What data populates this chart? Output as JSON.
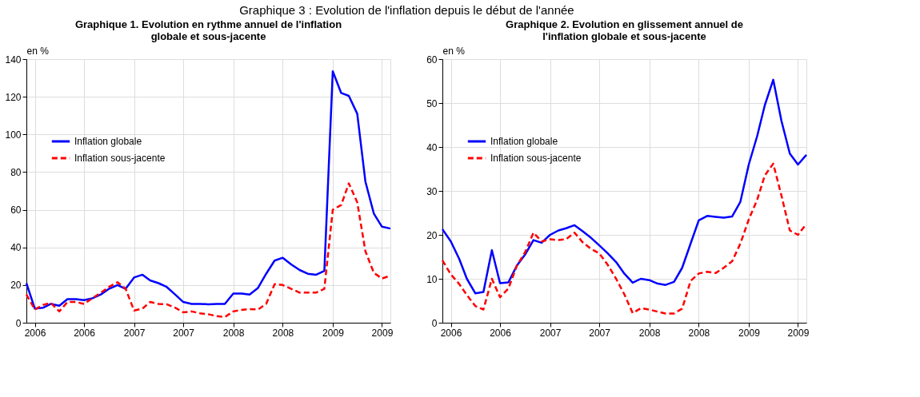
{
  "chart_data": [
    {
      "type": "line",
      "title": "Graphique 1. Evolution en rythme annuel de l'inflation globale et sous-jacente",
      "ylabel": "en %",
      "annotations": [
        "Graphique 3 : Evolution de l'inflation depuis le début de l'année"
      ],
      "x": [
        "2005-12",
        "2006-01",
        "2006-02",
        "2006-03",
        "2006-04",
        "2006-05",
        "2006-06",
        "2006-07",
        "2006-08",
        "2006-09",
        "2006-10",
        "2006-11",
        "2006-12",
        "2007-01",
        "2007-02",
        "2007-03",
        "2007-04",
        "2007-05",
        "2007-06",
        "2007-07",
        "2007-08",
        "2007-09",
        "2007-10",
        "2007-11",
        "2007-12",
        "2008-01",
        "2008-02",
        "2008-03",
        "2008-04",
        "2008-05",
        "2008-06",
        "2008-07",
        "2008-08",
        "2008-09",
        "2008-10",
        "2008-11",
        "2008-12",
        "2009-01",
        "2009-02",
        "2009-03",
        "2009-04",
        "2009-05",
        "2009-06",
        "2009-07",
        "2009-08"
      ],
      "xlim": [
        "2005-12",
        "2009-08"
      ],
      "xticks": [
        {
          "value": "2006-01",
          "label": "2006"
        },
        {
          "value": "2006-07",
          "label": "2006"
        },
        {
          "value": "2007-01",
          "label": "2007"
        },
        {
          "value": "2007-07",
          "label": "2007"
        },
        {
          "value": "2008-01",
          "label": "2008"
        },
        {
          "value": "2008-07",
          "label": "2008"
        },
        {
          "value": "2009-01",
          "label": "2009"
        },
        {
          "value": "2009-07",
          "label": "2009"
        }
      ],
      "ylim": [
        0,
        140
      ],
      "yticks": [
        0,
        20,
        40,
        60,
        80,
        100,
        120,
        140
      ],
      "grid": true,
      "legend": "top left",
      "series": [
        {
          "name": "Inflation globale",
          "color": "#0000ff",
          "line_style": "solid",
          "values": [
            21,
            7.5,
            8,
            10,
            9,
            12.5,
            12.5,
            12,
            13,
            15,
            18,
            20,
            18,
            24,
            25.5,
            22.5,
            21,
            19,
            15,
            11,
            10,
            10,
            9.8,
            10,
            10,
            15.5,
            15.5,
            15,
            18.5,
            26,
            33,
            34.5,
            31,
            28,
            26,
            25.5,
            27.5,
            133.5,
            122,
            120.5,
            111,
            75,
            58,
            51,
            50
          ]
        },
        {
          "name": "Inflation sous-jacente",
          "color": "#ff0000",
          "line_style": "dashed",
          "values": [
            15,
            7,
            9.5,
            10.5,
            6,
            11,
            11,
            10,
            13,
            16,
            19,
            21.5,
            18,
            6.5,
            7.5,
            11,
            10,
            9.8,
            8,
            5.5,
            6,
            5,
            4.5,
            3.5,
            3,
            6,
            6.8,
            7.2,
            7,
            10,
            20.5,
            20,
            18,
            16,
            16,
            16,
            18,
            60,
            62.5,
            74,
            64,
            38,
            26.5,
            23.5,
            25
          ]
        }
      ]
    },
    {
      "type": "line",
      "title": "Graphique 2. Evolution en glissement annuel de l'inflation globale et sous-jacente",
      "ylabel": "en %",
      "x": [
        "2005-12",
        "2006-01",
        "2006-02",
        "2006-03",
        "2006-04",
        "2006-05",
        "2006-06",
        "2006-07",
        "2006-08",
        "2006-09",
        "2006-10",
        "2006-11",
        "2006-12",
        "2007-01",
        "2007-02",
        "2007-03",
        "2007-04",
        "2007-05",
        "2007-06",
        "2007-07",
        "2007-08",
        "2007-09",
        "2007-10",
        "2007-11",
        "2007-12",
        "2008-01",
        "2008-02",
        "2008-03",
        "2008-04",
        "2008-05",
        "2008-06",
        "2008-07",
        "2008-08",
        "2008-09",
        "2008-10",
        "2008-11",
        "2008-12",
        "2009-01",
        "2009-02",
        "2009-03",
        "2009-04",
        "2009-05",
        "2009-06",
        "2009-07",
        "2009-08"
      ],
      "xlim": [
        "2005-12",
        "2009-08"
      ],
      "xticks": [
        {
          "value": "2006-01",
          "label": "2006"
        },
        {
          "value": "2006-07",
          "label": "2006"
        },
        {
          "value": "2007-01",
          "label": "2007"
        },
        {
          "value": "2007-07",
          "label": "2007"
        },
        {
          "value": "2008-01",
          "label": "2008"
        },
        {
          "value": "2008-07",
          "label": "2008"
        },
        {
          "value": "2009-01",
          "label": "2009"
        },
        {
          "value": "2009-07",
          "label": "2009"
        }
      ],
      "ylim": [
        0,
        60
      ],
      "yticks": [
        0,
        10,
        20,
        30,
        40,
        50,
        60
      ],
      "grid": true,
      "legend": "top left",
      "series": [
        {
          "name": "Inflation globale",
          "color": "#0000ff",
          "line_style": "solid",
          "values": [
            21.3,
            18.5,
            14.5,
            10,
            6.7,
            7,
            16.5,
            9,
            9.2,
            13,
            15.5,
            18.8,
            18.2,
            20,
            21,
            21.5,
            22.2,
            20.8,
            19.3,
            17.6,
            15.8,
            13.8,
            11.2,
            9.1,
            10,
            9.7,
            8.9,
            8.6,
            9.3,
            12.5,
            18,
            23.3,
            24.3,
            24.1,
            23.9,
            24.2,
            27.5,
            36,
            42.5,
            49.5,
            55.3,
            46,
            38.5,
            36,
            38.2
          ]
        },
        {
          "name": "Inflation sous-jacente",
          "color": "#ff0000",
          "line_style": "dashed",
          "values": [
            14.2,
            11,
            8.8,
            6.3,
            3.8,
            3,
            10,
            5.8,
            7.8,
            13,
            16,
            20.5,
            18.5,
            19,
            18.8,
            19,
            20.5,
            18.3,
            16.8,
            15.8,
            13.2,
            10,
            6.5,
            2.2,
            3.3,
            3,
            2.5,
            2.1,
            2.1,
            3.2,
            9.5,
            11.2,
            11.6,
            11.3,
            12.5,
            14,
            18,
            23.5,
            28,
            33.5,
            36.2,
            29,
            21,
            20,
            22.5
          ]
        }
      ]
    }
  ]
}
